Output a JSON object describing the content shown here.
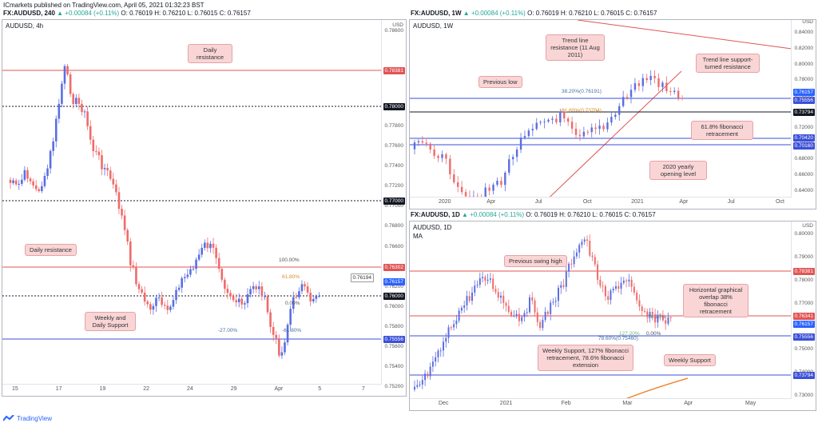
{
  "header": {
    "line1": "ICmarkets published on TradingView.com, April 05, 2021 01:32:23 BST",
    "line2_symbol": "FX:AUDUSD, 240",
    "line2_change": "▲ +0.00084 (+0.11%)",
    "line2_ohlc": "O: 0.76019 H: 0.76210 L: 0.76015 C: 0.76157"
  },
  "left": {
    "title": "AUDUSD, 4h",
    "yticks": [
      "0.78000",
      "0.77800",
      "0.77600",
      "0.77400",
      "0.77200",
      "0.77000",
      "0.76800",
      "0.76600",
      "0.76400",
      "0.76200",
      "0.76000",
      "0.75800",
      "0.75600",
      "0.75400",
      "0.75200"
    ],
    "ytop": "0.78000",
    "y_top_label": "0.78000",
    "y_extra_top": "0.78600",
    "xticks": [
      "15",
      "17",
      "19",
      "22",
      "24",
      "29",
      "Apr",
      "5",
      "7"
    ],
    "tags": {
      "t1": "0.78381",
      "t2": "0.78000",
      "t3": "0.77000",
      "t4": "0.76302",
      "t5": "0.76157",
      "t6": "0.76000",
      "t7": "0.75556",
      "t8": "0.76194"
    },
    "notes": {
      "n1": "Daily resistance",
      "n2": "Daily resistance",
      "n3": "Weekly and Daily Support"
    },
    "fib": {
      "f100": "100.00%",
      "f618": "61.80%",
      "f0": "0.00%",
      "fm27": "-27.00%",
      "fm618": "-61.80%"
    },
    "usd": "USD"
  },
  "right_top": {
    "header_symbol": "FX:AUDUSD, 1W",
    "header_change": "▲ +0.00084 (+0.11%)",
    "header_ohlc": "O: 0.76019 H: 0.76210 L: 0.76015 C: 0.76157",
    "title": "AUDUSD, 1W",
    "usd": "USD",
    "yticks": [
      "0.84000",
      "0.82000",
      "0.80000",
      "0.78000",
      "0.76000",
      "0.74000",
      "0.72000",
      "0.70000",
      "0.68000",
      "0.66000",
      "0.64000"
    ],
    "xticks": [
      "2020",
      "Apr",
      "Jul",
      "Oct",
      "2021",
      "Apr",
      "Jul",
      "Oct"
    ],
    "tags": {
      "t1": "0.76157",
      "t2": "0.75556",
      "t3": "0.73794",
      "t4": "0.70420",
      "t5": "0.70160"
    },
    "notes": {
      "n1": "Trend line resistance (11 Aug 2011)",
      "n2": "Trend line support-turned resistance",
      "n3": "Previous low",
      "n4": "61.8% fibonacci retracement",
      "n5": "2020 yearly opening level"
    },
    "fib": {
      "f382": "38.20%(0.76191)",
      "f618": "61.80%(0.73794)"
    }
  },
  "right_bottom": {
    "header_symbol": "FX:AUDUSD, 1D",
    "header_change": "▲ +0.00084 (+0.11%)",
    "header_ohlc": "O: 0.76019 H: 0.76210 L: 0.76015 C: 0.76157",
    "title": "AUDUSD, 1D",
    "sub": "MA",
    "usd": "USD",
    "yticks": [
      "0.80000",
      "0.79000",
      "0.78000",
      "0.77000",
      "0.76000",
      "0.75000",
      "0.74000",
      "0.73000"
    ],
    "xticks": [
      "Dec",
      "2021",
      "Feb",
      "Mar",
      "Apr",
      "May"
    ],
    "tags": {
      "t1": "0.78381",
      "t2": "0.76341",
      "t3": "0.76157",
      "t4": "0.75556",
      "t5": "0.73794"
    },
    "notes": {
      "n1": "Previous swing high",
      "n2": "Horizontal graphical overlap 38% fibonacci retracement",
      "n3": "Weekly Support, 127% fibonacci retracement, 78.6% fibonacci extension",
      "n4": "Weekly Support"
    },
    "fib": {
      "f382": "38.20%",
      "f127": "127.20%",
      "f0": "0.00%",
      "f786": "78.60%(0.75460)"
    }
  },
  "footer": {
    "brand": "TradingView"
  },
  "colors": {
    "up": "#5b6ee1",
    "down": "#ef6b6b",
    "resistance": "#e05555",
    "support": "#3b4fd8",
    "dark": "#131722"
  }
}
